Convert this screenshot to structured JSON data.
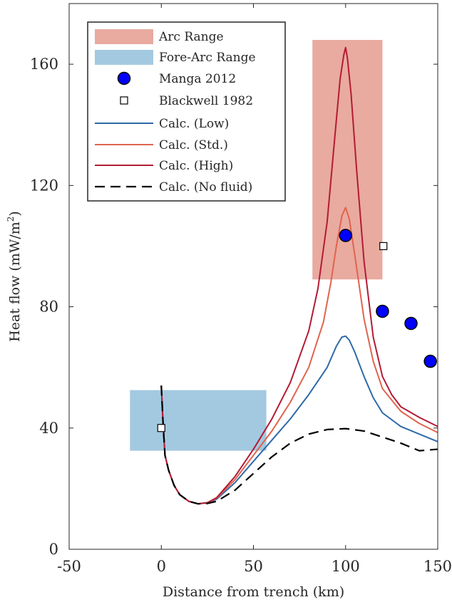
{
  "chart_data": {
    "type": "line",
    "title": "",
    "xlabel": "Distance from trench (km)",
    "ylabel": "Heat flow (mW/m²)",
    "ylabel_main": "Heat flow (mW/m",
    "ylabel_sup": "2",
    "ylabel_end": ")",
    "xlim": [
      -50,
      150
    ],
    "ylim": [
      0,
      180
    ],
    "xticks": [
      -50,
      0,
      50,
      100,
      150
    ],
    "yticks": [
      0,
      40,
      80,
      120,
      160
    ],
    "grid": false,
    "legend_position": "top-left",
    "ranges": [
      {
        "name": "Arc Range",
        "x": [
          82,
          120
        ],
        "y": [
          89,
          168
        ],
        "color": "#e9aaa0"
      },
      {
        "name": "Fore-Arc Range",
        "x": [
          -17,
          57
        ],
        "y": [
          32.5,
          52.5
        ],
        "color": "#a3c9e1"
      }
    ],
    "points": [
      {
        "name": "Manga 2012",
        "marker": "filled-circle",
        "color": "#0000ff",
        "x": [
          100,
          120,
          135.5,
          146
        ],
        "y": [
          103.5,
          78.5,
          74.5,
          62
        ]
      },
      {
        "name": "Blackwell 1982",
        "marker": "open-square",
        "color": "#000000",
        "x": [
          0,
          120.5
        ],
        "y": [
          40,
          100
        ]
      }
    ],
    "series": [
      {
        "name": "Calc. (Low)",
        "color": "#2e6aa8",
        "style": "solid",
        "x": [
          0,
          1,
          2,
          4,
          7,
          10,
          15,
          20,
          25,
          30,
          40,
          50,
          60,
          70,
          80,
          90,
          95,
          98,
          100,
          102,
          105,
          110,
          115,
          120,
          130,
          140,
          150
        ],
        "y": [
          54,
          41,
          31,
          26,
          21,
          18,
          15.8,
          15,
          15.3,
          16.5,
          22,
          29,
          36,
          43,
          51,
          60,
          67,
          70,
          70.3,
          69,
          65,
          57,
          50,
          45,
          40.5,
          38,
          35.5
        ]
      },
      {
        "name": "Calc. (Std.)",
        "color": "#e0644e",
        "style": "solid",
        "x": [
          0,
          1,
          2,
          4,
          7,
          10,
          15,
          20,
          25,
          30,
          40,
          50,
          60,
          70,
          80,
          88,
          92,
          95,
          98,
          100,
          102,
          105,
          110,
          115,
          120,
          130,
          140,
          150
        ],
        "y": [
          54,
          41,
          31,
          26,
          21,
          18,
          15.8,
          15,
          15.3,
          16.8,
          23,
          31,
          39,
          48.5,
          60,
          75,
          88,
          100,
          110,
          112.7,
          109,
          97,
          76,
          62,
          53,
          45.5,
          41.5,
          38.5
        ]
      },
      {
        "name": "Calc. (High)",
        "color": "#b31b34",
        "style": "solid",
        "x": [
          0,
          1,
          2,
          4,
          7,
          10,
          15,
          20,
          25,
          30,
          40,
          50,
          60,
          70,
          80,
          85,
          90,
          94,
          97,
          99,
          100,
          101,
          103,
          106,
          110,
          115,
          120,
          125,
          130,
          140,
          150
        ],
        "y": [
          54,
          41,
          31,
          26,
          21,
          18,
          15.8,
          15,
          15.4,
          17,
          24,
          33,
          43,
          55,
          72,
          86,
          108,
          135,
          155,
          163,
          165.5,
          162,
          150,
          125,
          95,
          70,
          57,
          51,
          47,
          43.5,
          40.5
        ]
      },
      {
        "name": "Calc. (No fluid)",
        "color": "#000000",
        "style": "dashed",
        "x": [
          0,
          1,
          2,
          4,
          7,
          10,
          15,
          20,
          25,
          30,
          40,
          50,
          60,
          70,
          80,
          90,
          100,
          110,
          120,
          130,
          140,
          150
        ],
        "y": [
          54,
          41,
          31,
          26,
          21,
          18,
          15.8,
          15,
          15.1,
          15.8,
          19.5,
          25,
          30.5,
          35,
          38,
          39.5,
          39.8,
          39,
          37,
          35,
          32.5,
          33
        ]
      }
    ]
  }
}
